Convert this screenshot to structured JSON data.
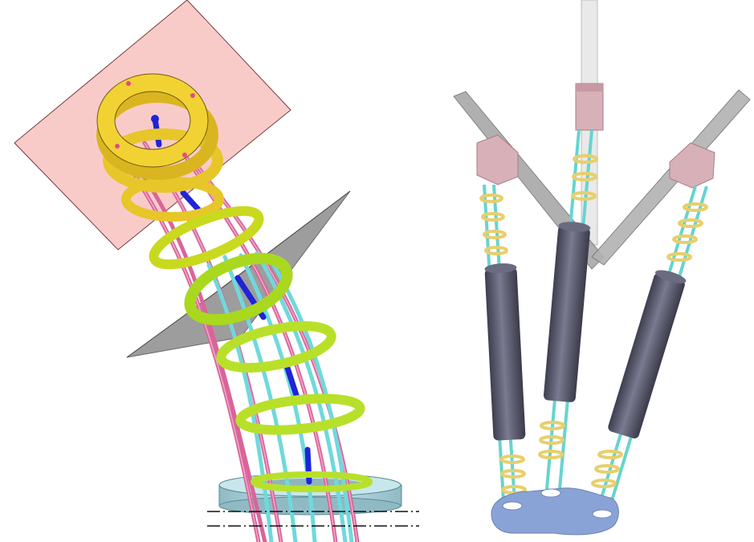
{
  "figure": {
    "panels": [
      {
        "id": "left",
        "depicts": "continuum-robot-with-ring-disks",
        "colors": {
          "plane_pink": "#f9c9c6",
          "plane_gray": "#9a9a9a",
          "ring_yellow": "#f2d233",
          "ring_lime": "#b8e02a",
          "rod_pink": "#d9649a",
          "rod_cyan": "#6fd9dc",
          "rod_blue": "#1f24d6",
          "base_cyan": "#b7dde3"
        }
      },
      {
        "id": "right",
        "depicts": "three-legged-robot-with-telescopic-links",
        "colors": {
          "cylinder": "#5c5c70",
          "joint_pink": "#d8b1b8",
          "arm_gray": "#9a9a9a",
          "rod_cyan": "#66d4d0",
          "ring_yellow": "#e8cf6c",
          "base_blue": "#8aa3d6"
        }
      }
    ]
  }
}
